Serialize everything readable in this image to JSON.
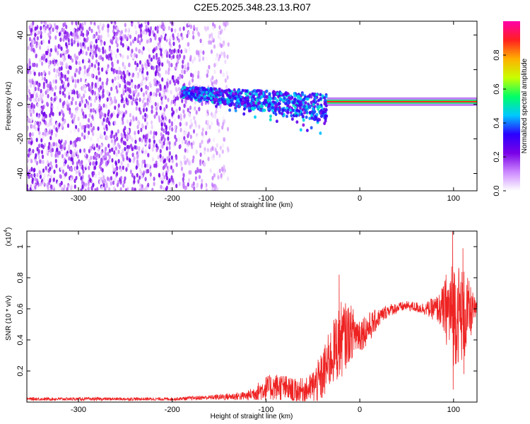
{
  "title": "C2E5.2025.348.23.13.R07",
  "chart_data": [
    {
      "type": "heatmap",
      "name": "spectrogram",
      "xlabel": "Height of straight line (km)",
      "ylabel": "Frequency (Hz)",
      "xlim": [
        -355,
        125
      ],
      "ylim": [
        -50,
        48
      ],
      "xticks": [
        -300,
        -200,
        -100,
        0,
        100
      ],
      "yticks": [
        -40,
        -20,
        0,
        20,
        40
      ],
      "colorbar": {
        "label": "Normalized spectral amplitude",
        "range": [
          0.0,
          1.0
        ],
        "ticks": [
          0.0,
          0.2,
          0.4,
          0.6,
          0.8
        ],
        "colors": [
          "#ffffff",
          "#cc88ff",
          "#7a00e6",
          "#2b00ff",
          "#00c8ff",
          "#00ff66",
          "#c8ff00",
          "#ffb000",
          "#ff2020",
          "#ff00aa"
        ]
      },
      "regions": [
        {
          "description": "broadband noise",
          "x": [
            -355,
            -140
          ],
          "freq": [
            -50,
            48
          ],
          "amplitude": [
            0.0,
            0.25
          ]
        },
        {
          "description": "noisy carrier",
          "x": [
            -190,
            -35
          ],
          "freq_start": 7,
          "freq_end": -2,
          "amplitude": [
            0.2,
            0.5
          ]
        },
        {
          "description": "stable carrier",
          "x": [
            -35,
            125
          ],
          "freq": 1.5,
          "amplitude": [
            0.8,
            1.0
          ]
        }
      ]
    },
    {
      "type": "line",
      "name": "snr",
      "xlabel": "Height of straight line (km)",
      "ylabel": "SNR (10 * v/v)",
      "yscale_label": "(x10",
      "yscale_exponent": "4",
      "xlim": [
        -355,
        125
      ],
      "ylim": [
        0,
        1.1
      ],
      "xticks": [
        -300,
        -200,
        -100,
        0,
        100
      ],
      "yticks": [
        0.2,
        0.4,
        0.6,
        0.8,
        1
      ],
      "ytick_labels": [
        "0.2",
        "0.4",
        "0.6",
        "0.8",
        "1"
      ],
      "color": "#ee2222",
      "series_profile": [
        {
          "x": -355,
          "y": 0.02,
          "noise": 0.01
        },
        {
          "x": -200,
          "y": 0.02,
          "noise": 0.01
        },
        {
          "x": -160,
          "y": 0.03,
          "noise": 0.015
        },
        {
          "x": -120,
          "y": 0.04,
          "noise": 0.03
        },
        {
          "x": -100,
          "y": 0.09,
          "noise": 0.08
        },
        {
          "x": -85,
          "y": 0.1,
          "noise": 0.09
        },
        {
          "x": -70,
          "y": 0.07,
          "noise": 0.08
        },
        {
          "x": -55,
          "y": 0.08,
          "noise": 0.08
        },
        {
          "x": -42,
          "y": 0.14,
          "noise": 0.16
        },
        {
          "x": -30,
          "y": 0.3,
          "noise": 0.2
        },
        {
          "x": -20,
          "y": 0.4,
          "noise": 0.25
        },
        {
          "x": -10,
          "y": 0.45,
          "noise": 0.18
        },
        {
          "x": 0,
          "y": 0.44,
          "noise": 0.12
        },
        {
          "x": 10,
          "y": 0.48,
          "noise": 0.1
        },
        {
          "x": 20,
          "y": 0.54,
          "noise": 0.06
        },
        {
          "x": 30,
          "y": 0.59,
          "noise": 0.04
        },
        {
          "x": 50,
          "y": 0.62,
          "noise": 0.03
        },
        {
          "x": 70,
          "y": 0.6,
          "noise": 0.04
        },
        {
          "x": 85,
          "y": 0.6,
          "noise": 0.1
        },
        {
          "x": 100,
          "y": 0.58,
          "noise": 0.35
        },
        {
          "x": 112,
          "y": 0.56,
          "noise": 0.3
        },
        {
          "x": 125,
          "y": 0.6,
          "noise": 0.03
        }
      ],
      "peaks": [
        {
          "x": -22,
          "y": 0.82
        },
        {
          "x": 99,
          "y": 1.1
        },
        {
          "x": 99.6,
          "y": 0.08
        },
        {
          "x": 110,
          "y": 0.99
        },
        {
          "x": 111,
          "y": 0.18
        },
        {
          "x": 92,
          "y": 0.82
        }
      ]
    }
  ]
}
